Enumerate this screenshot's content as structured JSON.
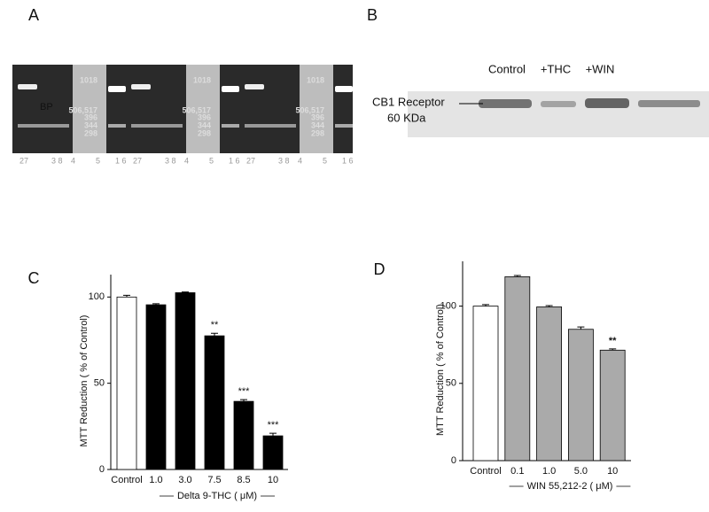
{
  "panels": [
    "A",
    "B",
    "C",
    "D"
  ],
  "gel_a": {
    "marker": "BP",
    "ladder": [
      "1018",
      "506,517",
      "396",
      "344",
      "298"
    ],
    "lanes": [
      "27",
      "3 8",
      "4",
      "5",
      "1 6"
    ]
  },
  "gel_b": {
    "lanes": [
      "Control",
      "+THC",
      "+WIN"
    ],
    "band": "CB1 Receptor",
    "size": "60 KDa"
  },
  "chart_data": [
    {
      "type": "bar",
      "y_label": "MTT Reduction ( % of Control)",
      "x_label": "Delta 9-THC ( μM)",
      "categories": [
        "Control",
        "1.0",
        "3.0",
        "7.5",
        "8.5",
        "10"
      ],
      "values": [
        100,
        95.5,
        102.5,
        77.5,
        39.5,
        19.5
      ],
      "errors": [
        1,
        0.6,
        0.4,
        1.5,
        1,
        1.5
      ],
      "colors": [
        "#ffffff",
        "#000000",
        "#000000",
        "#000000",
        "#000000",
        "#000000"
      ],
      "significance": [
        null,
        null,
        null,
        "**",
        "***",
        "***"
      ],
      "ylim": [
        0,
        113
      ],
      "yticks": [
        0,
        50,
        100
      ]
    },
    {
      "type": "bar",
      "y_label": "MTT Reduction ( % of Control)",
      "x_label": "WIN 55,212-2 ( μM)",
      "categories": [
        "Control",
        "0.1",
        "1.0",
        "5.0",
        "10"
      ],
      "values": [
        100,
        119,
        99.5,
        85,
        71.5
      ],
      "errors": [
        1,
        0.8,
        0.8,
        1.5,
        0.8
      ],
      "colors": [
        "#ffffff",
        "#aaaaaa",
        "#aaaaaa",
        "#aaaaaa",
        "#aaaaaa"
      ],
      "significance": [
        null,
        null,
        null,
        null,
        "**"
      ],
      "ylim": [
        0,
        129
      ],
      "yticks": [
        0,
        50,
        100
      ]
    }
  ]
}
